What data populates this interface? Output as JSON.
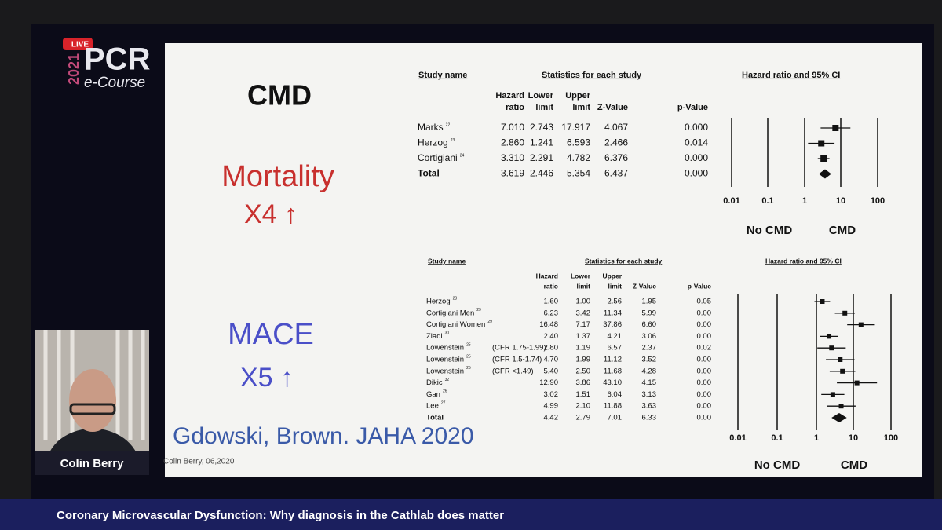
{
  "header": {
    "badge": "LIVE",
    "year": "2021",
    "brand": "PCR",
    "subtitle": "e-Course"
  },
  "slide": {
    "title": "CMD",
    "mortality": {
      "label": "Mortality",
      "factor": "X4 ↑"
    },
    "mace": {
      "label": "MACE",
      "factor": "X5 ↑"
    },
    "citation": "Gdowski, Brown. JAHA 2020",
    "footer": "Colin Berry, 06,2020",
    "tables": [
      {
        "study_heading": "Study name",
        "stats_heading": "Statistics for each study",
        "plot_heading": "Hazard ratio and 95% CI",
        "columns": [
          [
            "Hazard",
            "ratio"
          ],
          [
            "Lower",
            "limit"
          ],
          [
            "Upper",
            "limit"
          ],
          [
            "Z-Value"
          ],
          [
            "p-Value"
          ]
        ],
        "rows": [
          {
            "study": "Marks",
            "ref": "22",
            "values": [
              "7.010",
              "2.743",
              "17.917",
              "4.067",
              "0.000"
            ]
          },
          {
            "study": "Herzog",
            "ref": "23",
            "values": [
              "2.860",
              "1.241",
              "6.593",
              "2.466",
              "0.014"
            ]
          },
          {
            "study": "Cortigiani",
            "ref": "24",
            "values": [
              "3.310",
              "2.291",
              "4.782",
              "6.376",
              "0.000"
            ]
          },
          {
            "study": "Total",
            "values": [
              "3.619",
              "2.446",
              "5.354",
              "6.437",
              "0.000"
            ]
          }
        ],
        "axis": [
          "0.01",
          "0.1",
          "1",
          "10",
          "100"
        ],
        "left_label": "No CMD",
        "right_label": "CMD"
      },
      {
        "study_heading": "Study name",
        "stats_heading": "Statistics for each study",
        "plot_heading": "Hazard ratio and 95% CI",
        "columns": [
          [
            "Hazard",
            "ratio"
          ],
          [
            "Lower",
            "limit"
          ],
          [
            "Upper",
            "limit"
          ],
          [
            "Z-Value"
          ],
          [
            "p-Value"
          ]
        ],
        "rows": [
          {
            "study": "Herzog",
            "ref": "23",
            "values": [
              "1.60",
              "1.00",
              "2.56",
              "1.95",
              "0.05"
            ]
          },
          {
            "study": "Cortigiani Men",
            "ref": "29",
            "values": [
              "6.23",
              "3.42",
              "11.34",
              "5.99",
              "0.00"
            ]
          },
          {
            "study": "Cortigiani Women",
            "ref": "29",
            "values": [
              "16.48",
              "7.17",
              "37.86",
              "6.60",
              "0.00"
            ]
          },
          {
            "study": "Ziadi",
            "ref": "30",
            "values": [
              "2.40",
              "1.37",
              "4.21",
              "3.06",
              "0.00"
            ]
          },
          {
            "study": "Lowenstein",
            "ref": "25",
            "note": "(CFR 1.75-1.99)",
            "values": [
              "2.80",
              "1.19",
              "6.57",
              "2.37",
              "0.02"
            ]
          },
          {
            "study": "Lowenstein",
            "ref": "25",
            "note": "(CFR 1.5-1.74)",
            "values": [
              "4.70",
              "1.99",
              "11.12",
              "3.52",
              "0.00"
            ]
          },
          {
            "study": "Lowenstein",
            "ref": "25",
            "note": "(CFR <1.49)",
            "values": [
              "5.40",
              "2.50",
              "11.68",
              "4.28",
              "0.00"
            ]
          },
          {
            "study": "Dikic",
            "ref": "32",
            "values": [
              "12.90",
              "3.86",
              "43.10",
              "4.15",
              "0.00"
            ]
          },
          {
            "study": "Gan",
            "ref": "26",
            "values": [
              "3.02",
              "1.51",
              "6.04",
              "3.13",
              "0.00"
            ]
          },
          {
            "study": "Lee",
            "ref": "27",
            "values": [
              "4.99",
              "2.10",
              "11.88",
              "3.63",
              "0.00"
            ]
          },
          {
            "study": "Total",
            "values": [
              "4.42",
              "2.79",
              "7.01",
              "6.33",
              "0.00"
            ]
          }
        ],
        "axis": [
          "0.01",
          "0.1",
          "1",
          "10",
          "100"
        ],
        "left_label": "No CMD",
        "right_label": "CMD"
      }
    ]
  },
  "speaker": {
    "name": "Colin Berry"
  },
  "banner": "Coronary Microvascular Dysfunction: Why diagnosis in the Cathlab does matter"
}
